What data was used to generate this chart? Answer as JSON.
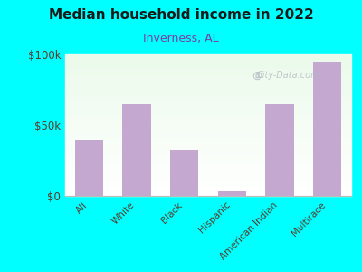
{
  "title": "Median household income in 2022",
  "subtitle": "Inverness, AL",
  "categories": [
    "All",
    "White",
    "Black",
    "Hispanic",
    "American Indian",
    "Multirace"
  ],
  "values": [
    40000,
    65000,
    33000,
    3000,
    65000,
    95000
  ],
  "bar_color": "#c4a8d0",
  "background_outer": "#00FFFF",
  "title_color": "#1a1a1a",
  "subtitle_color": "#7b3f9e",
  "tick_label_color": "#5a3a2a",
  "watermark": "City-Data.com",
  "ylim": [
    0,
    100000
  ],
  "yticks": [
    0,
    50000,
    100000
  ],
  "ytick_labels": [
    "$0",
    "$50k",
    "$100k"
  ]
}
